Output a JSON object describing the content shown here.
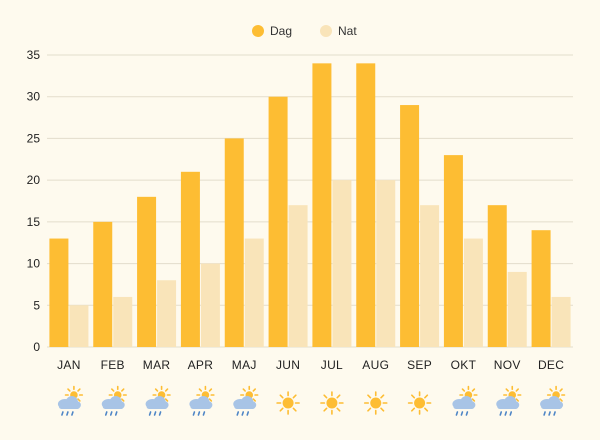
{
  "chart_data": {
    "type": "bar",
    "categories": [
      "JAN",
      "FEB",
      "MAR",
      "APR",
      "MAJ",
      "JUN",
      "JUL",
      "AUG",
      "SEP",
      "OKT",
      "NOV",
      "DEC"
    ],
    "series": [
      {
        "name": "Dag",
        "color": "#fdbd33",
        "values": [
          13,
          15,
          18,
          21,
          25,
          30,
          34,
          34,
          29,
          23,
          17,
          14
        ]
      },
      {
        "name": "Nat",
        "color": "#f9e4b9",
        "values": [
          5,
          6,
          8,
          10,
          13,
          17,
          20,
          20,
          17,
          13,
          9,
          6
        ]
      }
    ],
    "yticks": [
      0,
      5,
      10,
      15,
      20,
      25,
      30,
      35
    ],
    "ylim": [
      0,
      35
    ],
    "grid": true,
    "legend_position": "top-center",
    "weather_icons": [
      "sun-cloud-rain-icon",
      "sun-cloud-rain-icon",
      "sun-cloud-rain-icon",
      "sun-cloud-rain-icon",
      "sun-cloud-rain-icon",
      "sun-icon",
      "sun-icon",
      "sun-icon",
      "sun-icon",
      "sun-cloud-rain-icon",
      "sun-cloud-rain-icon",
      "sun-cloud-rain-icon"
    ]
  },
  "colors": {
    "sun": "#fdbd33",
    "cloud": "#a8c4e6",
    "rain": "#4f86c6"
  }
}
